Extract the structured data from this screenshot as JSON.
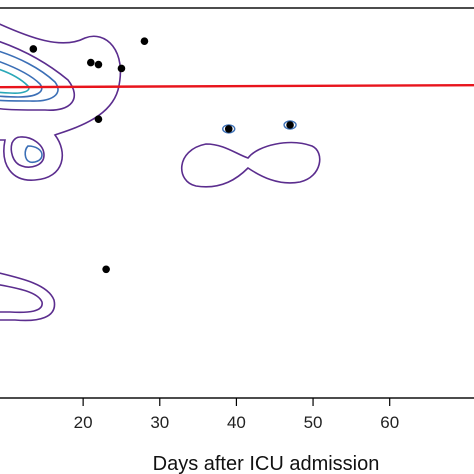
{
  "chart_data": {
    "type": "scatter",
    "title": "",
    "xlabel": "Days after ICU admission",
    "ylabel": "",
    "xlim": [
      8.5,
      71
    ],
    "x_ticks": [
      20,
      30,
      40,
      50,
      60
    ],
    "x_tick_labels": [
      "20",
      "30",
      "40",
      "50",
      "60"
    ],
    "points": [
      {
        "x": 13.5,
        "y": 0.895
      },
      {
        "x": 21.0,
        "y": 0.86
      },
      {
        "x": 22.0,
        "y": 0.855
      },
      {
        "x": 25.0,
        "y": 0.845
      },
      {
        "x": 28.0,
        "y": 0.915
      },
      {
        "x": 22.0,
        "y": 0.715
      },
      {
        "x": 39.0,
        "y": 0.69
      },
      {
        "x": 47.0,
        "y": 0.7
      },
      {
        "x": 23.0,
        "y": 0.33
      }
    ],
    "reference_line": {
      "y": 0.797,
      "color": "#e8141c"
    },
    "colors": {
      "points": "#000000",
      "contour_outer": "#5b2d8e",
      "contour_mid": "#3b6fb6",
      "contour_inner": "#2aa8b8",
      "frame": "#000000"
    },
    "grid": false
  }
}
